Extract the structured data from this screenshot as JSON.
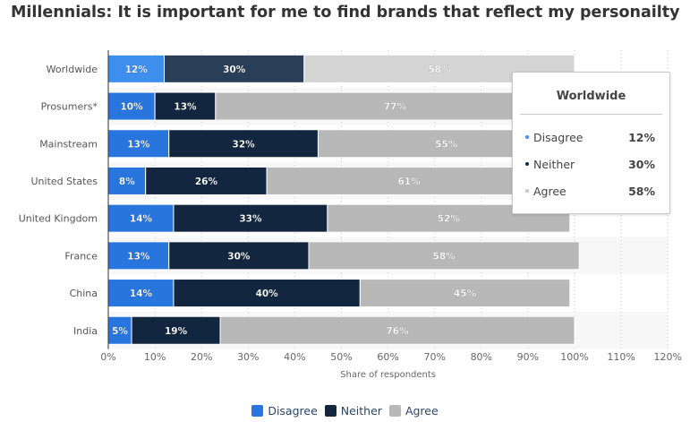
{
  "chart_data": {
    "type": "bar",
    "orientation": "horizontal",
    "stacked": true,
    "title": "Millennials: It is important for me to find brands that reflect my personailty",
    "xlabel": "Share of respondents",
    "ylabel": "",
    "xlim": [
      0,
      120
    ],
    "xticks": [
      "0%",
      "10%",
      "20%",
      "30%",
      "40%",
      "50%",
      "60%",
      "70%",
      "80%",
      "90%",
      "100%",
      "110%",
      "120%"
    ],
    "categories": [
      "Worldwide",
      "Prosumers*",
      "Mainstream",
      "United States",
      "United Kingdom",
      "France",
      "China",
      "India"
    ],
    "series": [
      {
        "name": "Disagree",
        "color": "#2876dd",
        "highlight_color": "#3e8ef0",
        "values": [
          12,
          10,
          13,
          8,
          14,
          13,
          14,
          5
        ]
      },
      {
        "name": "Neither",
        "color": "#13263f",
        "highlight_color": "#2a3f57",
        "values": [
          30,
          13,
          32,
          26,
          33,
          30,
          40,
          19
        ]
      },
      {
        "name": "Agree",
        "color": "#b8b8b8",
        "highlight_color": "#d4d4d4",
        "values": [
          58,
          77,
          55,
          61,
          52,
          58,
          45,
          76
        ]
      }
    ],
    "legend_position": "bottom",
    "grid": true,
    "highlighted_category": "Worldwide"
  },
  "tooltip": {
    "title": "Worldwide",
    "rows": [
      {
        "label": "Disagree",
        "value": "12%",
        "color": "#3e8ef0"
      },
      {
        "label": "Neither",
        "value": "30%",
        "color": "#13263f"
      },
      {
        "label": "Agree",
        "value": "58%",
        "color": "#c8c8c8"
      }
    ]
  }
}
